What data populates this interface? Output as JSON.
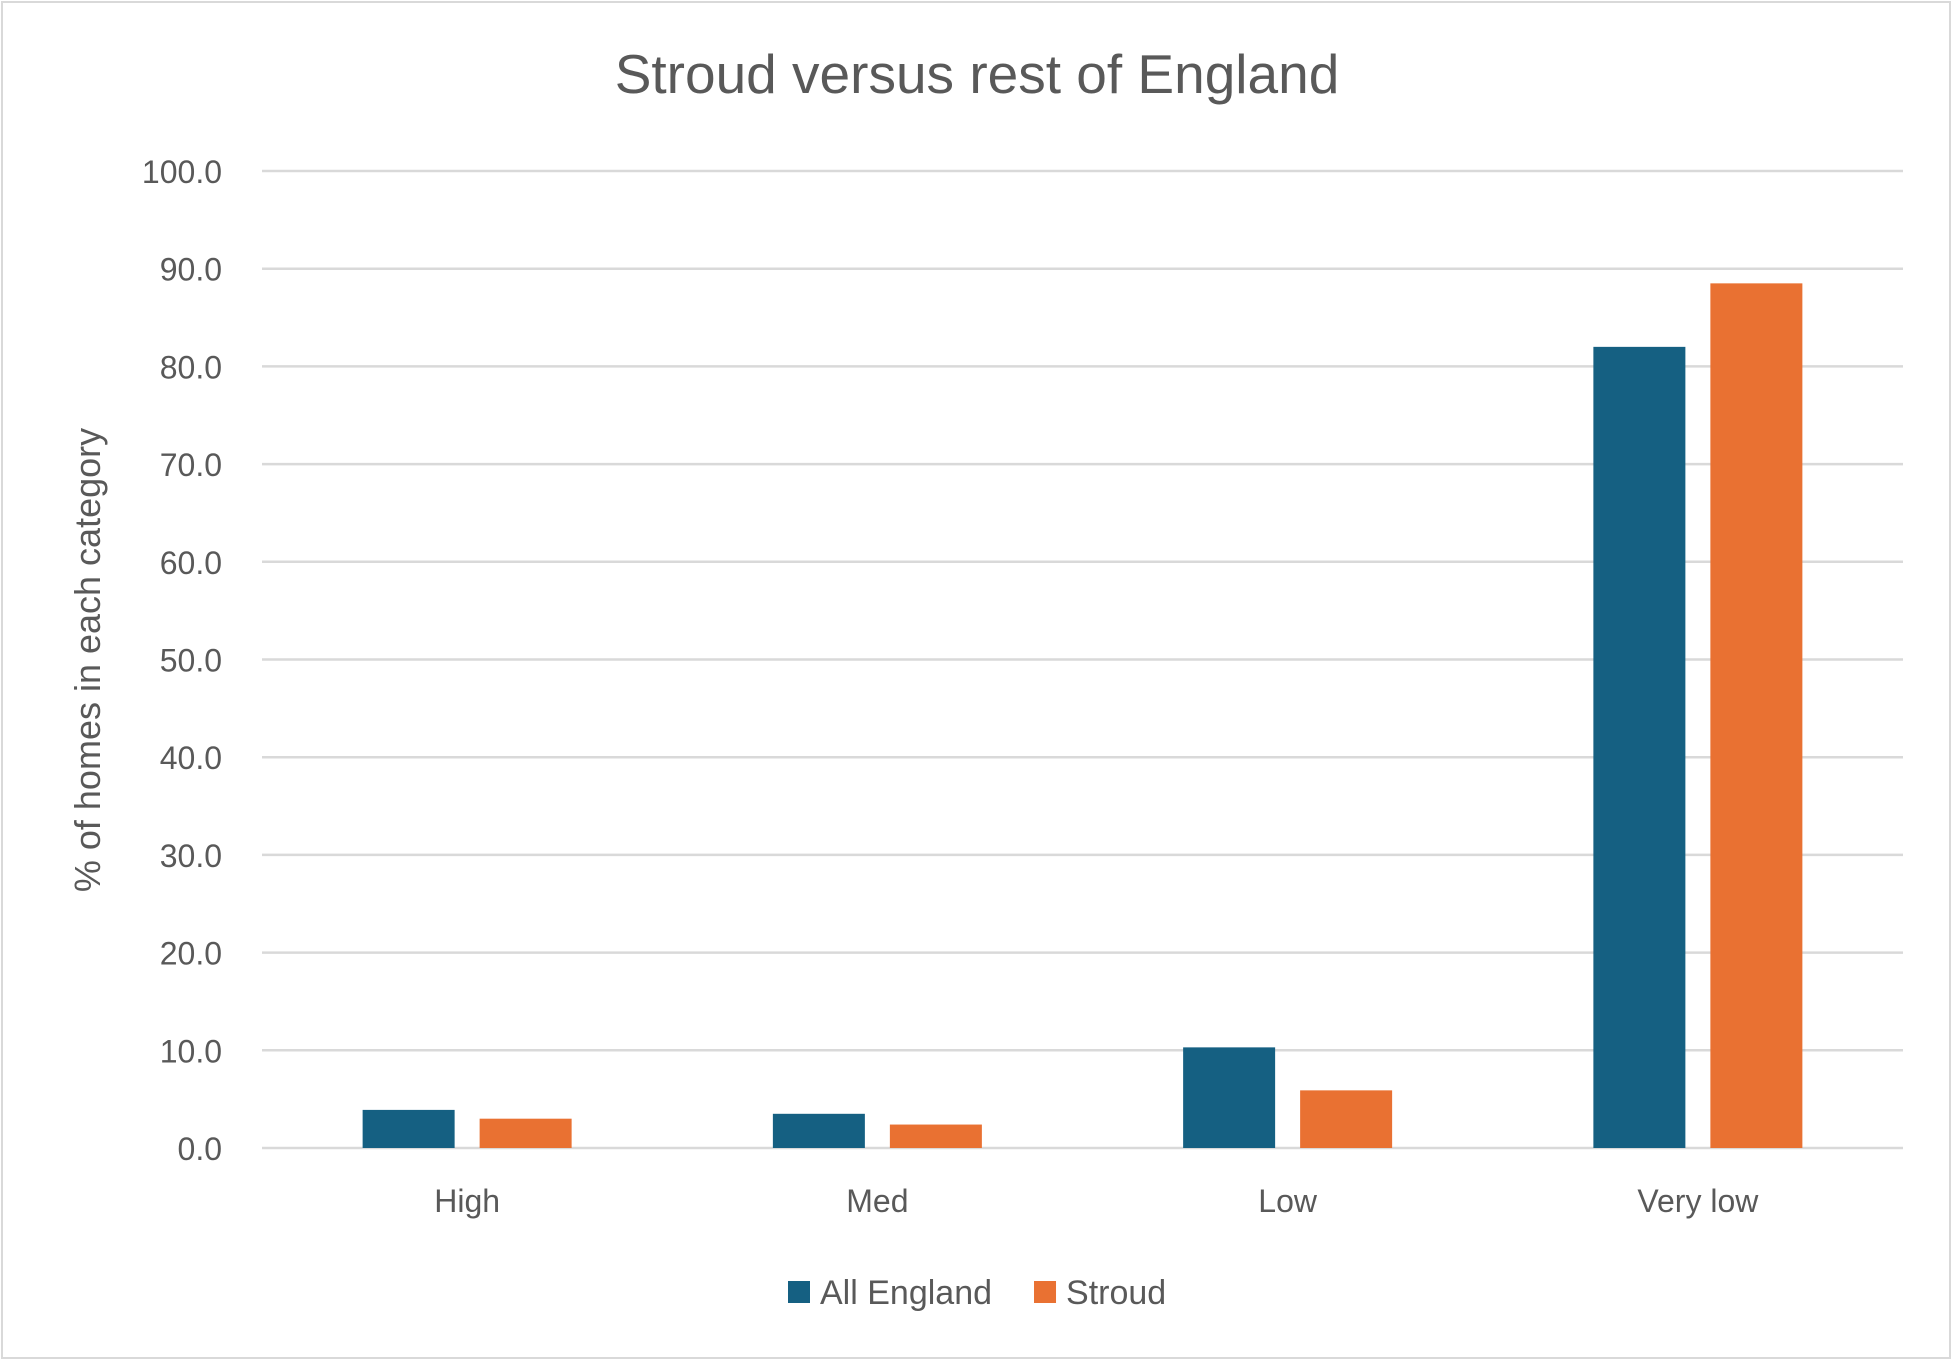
{
  "chart_data": {
    "type": "bar",
    "title": "Stroud versus rest of England",
    "xlabel": "",
    "ylabel": "% of homes in each category",
    "categories": [
      "High",
      "Med",
      "Low",
      "Very low"
    ],
    "series": [
      {
        "name": "All England",
        "color": "#156082",
        "values": [
          3.9,
          3.5,
          10.3,
          82.0
        ]
      },
      {
        "name": "Stroud",
        "color": "#E97132",
        "values": [
          3.0,
          2.4,
          5.9,
          88.5
        ]
      }
    ],
    "ylim": [
      0,
      100
    ],
    "yticks": [
      0,
      10,
      20,
      30,
      40,
      50,
      60,
      70,
      80,
      90,
      100
    ],
    "ytick_labels": [
      "0.0",
      "10.0",
      "20.0",
      "30.0",
      "40.0",
      "50.0",
      "60.0",
      "70.0",
      "80.0",
      "90.0",
      "100.0"
    ],
    "grid": true,
    "legend": "bottom"
  }
}
